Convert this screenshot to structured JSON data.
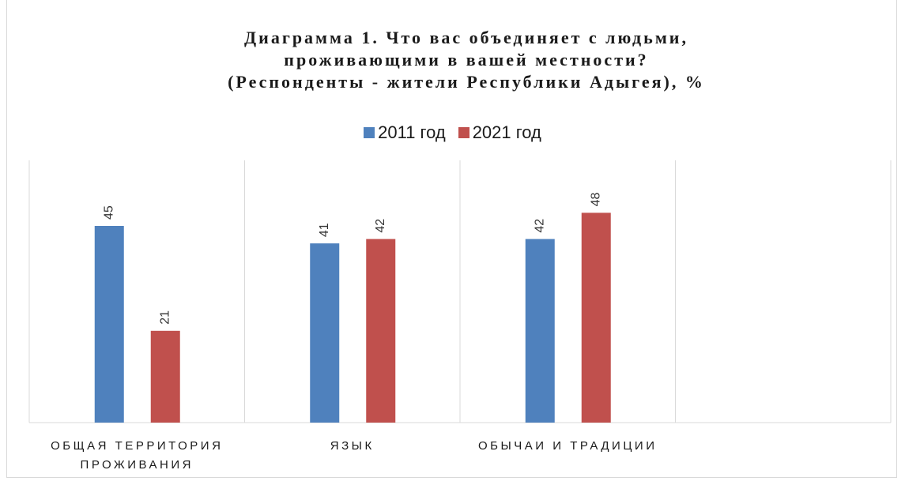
{
  "chart_data": {
    "type": "bar",
    "title": "Диаграмма 1. Что вас объединяет с людьми,\nпроживающими в вашей местности?\n(Респонденты - жители Республики Адыгея), %",
    "categories": [
      "ОБЩАЯ ТЕРРИТОРИЯ ПРОЖИВАНИЯ",
      "ЯЗЫК",
      "ОБЫЧАИ И ТРАДИЦИИ",
      null
    ],
    "series": [
      {
        "name": "2011 год",
        "color": "#4f81bd",
        "values": [
          45,
          41,
          42,
          null
        ]
      },
      {
        "name": "2021 год",
        "color": "#c0504d",
        "values": [
          21,
          42,
          48,
          null
        ]
      }
    ],
    "ylim": [
      0,
      60
    ],
    "grid": false,
    "legend": "top"
  }
}
